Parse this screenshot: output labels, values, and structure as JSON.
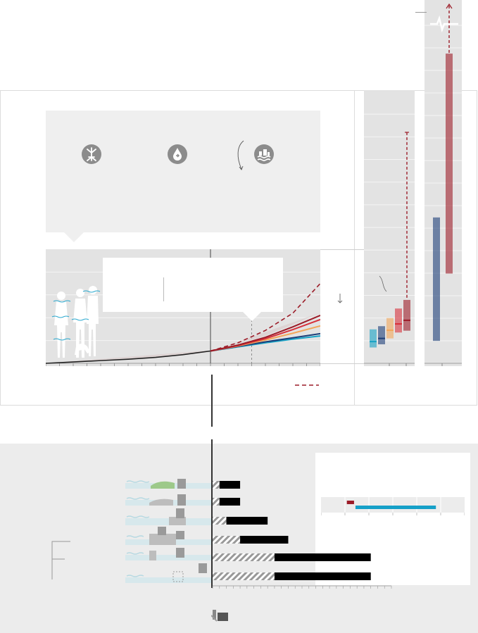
{
  "colors": {
    "panel_light": "#f0f0f0",
    "panel_mid": "#e3e3e3",
    "panel_dark": "#d8d8d8",
    "icon_grey": "#8c8c8c",
    "observed_line": "#222222",
    "ssp1_19": "#17a2c5",
    "ssp1_26": "#1c3e78",
    "ssp2_45": "#f2a65a",
    "ssp3_70": "#d7303a",
    "ssp5_85": "#9c1c28",
    "low_likelihood": "#9c1c28",
    "hatch": "#999999",
    "bar_black": "#000000",
    "range_teal": "#15a0c8",
    "range_red": "#9c1c28"
  },
  "icons": {
    "impact_icon_1": "tree-roots-icon",
    "impact_icon_2": "water-drop-icon",
    "impact_icon_3": "coastal-flood-icon",
    "people_silhouettes": "people-silhouette-icon",
    "adaptation_marker": "seawall-icon"
  },
  "chart_data": [
    {
      "type": "line",
      "title": "",
      "xlabel": "",
      "ylabel": "",
      "description_text": "",
      "series": [
        {
          "color_key": "observed_line",
          "x": [
            1900,
            1920,
            1940,
            1960,
            1980,
            2000,
            2010,
            2020
          ],
          "values": [
            0,
            0.03,
            0.06,
            0.09,
            0.13,
            0.19,
            0.23,
            0.27
          ]
        },
        {
          "color_key": "ssp1_19",
          "x": [
            2020,
            2040,
            2060,
            2080,
            2100
          ],
          "values": [
            0.27,
            0.36,
            0.45,
            0.53,
            0.6
          ]
        },
        {
          "color_key": "ssp1_26",
          "x": [
            2020,
            2040,
            2060,
            2080,
            2100
          ],
          "values": [
            0.27,
            0.37,
            0.47,
            0.56,
            0.65
          ]
        },
        {
          "color_key": "ssp2_45",
          "x": [
            2020,
            2040,
            2060,
            2080,
            2100
          ],
          "values": [
            0.27,
            0.38,
            0.51,
            0.66,
            0.82
          ]
        },
        {
          "color_key": "ssp3_70",
          "x": [
            2020,
            2040,
            2060,
            2080,
            2100
          ],
          "values": [
            0.27,
            0.39,
            0.54,
            0.74,
            0.96
          ]
        },
        {
          "color_key": "ssp5_85",
          "x": [
            2020,
            2040,
            2060,
            2080,
            2100
          ],
          "values": [
            0.27,
            0.4,
            0.57,
            0.8,
            1.05
          ],
          "dashed": false
        },
        {
          "color_key": "low_likelihood",
          "x": [
            2020,
            2040,
            2060,
            2080,
            2100
          ],
          "values": [
            0.27,
            0.45,
            0.72,
            1.1,
            1.75
          ],
          "dashed": true
        }
      ],
      "xlim": [
        1900,
        2100
      ],
      "ylim": [
        0,
        2.5
      ],
      "legend_dashed_line": true
    },
    {
      "type": "box",
      "title": "",
      "boxes": [
        {
          "color_key": "ssp1_19",
          "low": 0.35,
          "high": 0.75,
          "median": 0.48
        },
        {
          "color_key": "ssp1_26",
          "low": 0.42,
          "high": 0.82,
          "median": 0.55
        },
        {
          "color_key": "ssp2_45",
          "low": 0.55,
          "high": 1.0,
          "median": 0.73
        },
        {
          "color_key": "ssp3_70",
          "low": 0.68,
          "high": 1.21,
          "median": 0.87
        },
        {
          "color_key": "ssp5_85",
          "low": 0.72,
          "high": 1.4,
          "median": 0.95,
          "whisker_high": 5.1
        }
      ],
      "ylim": [
        0,
        6
      ]
    },
    {
      "type": "box",
      "title": "",
      "boxes": [
        {
          "color_key": "ssp1_26",
          "low": 1.0,
          "high": 6.5,
          "median": null
        },
        {
          "color_key": "ssp5_85",
          "low": 4.0,
          "high": 13.8,
          "median": null,
          "arrow_high": true
        }
      ],
      "ylim": [
        0,
        16
      ],
      "axis_break": true
    },
    {
      "type": "bar",
      "title": "",
      "categories": [
        "",
        "",
        "",
        "",
        "",
        ""
      ],
      "hatched_values": [
        1,
        1,
        2,
        4,
        9,
        9
      ],
      "solid_values": [
        4,
        4,
        8,
        11,
        23,
        23
      ],
      "xlim": [
        0,
        26
      ]
    },
    {
      "type": "range",
      "title": "",
      "ranges": [
        {
          "color_key": "range_red",
          "start": 0.18,
          "end": 0.23
        },
        {
          "color_key": "range_teal",
          "start": 0.24,
          "end": 0.8
        }
      ],
      "xlim": [
        0,
        1
      ]
    }
  ]
}
